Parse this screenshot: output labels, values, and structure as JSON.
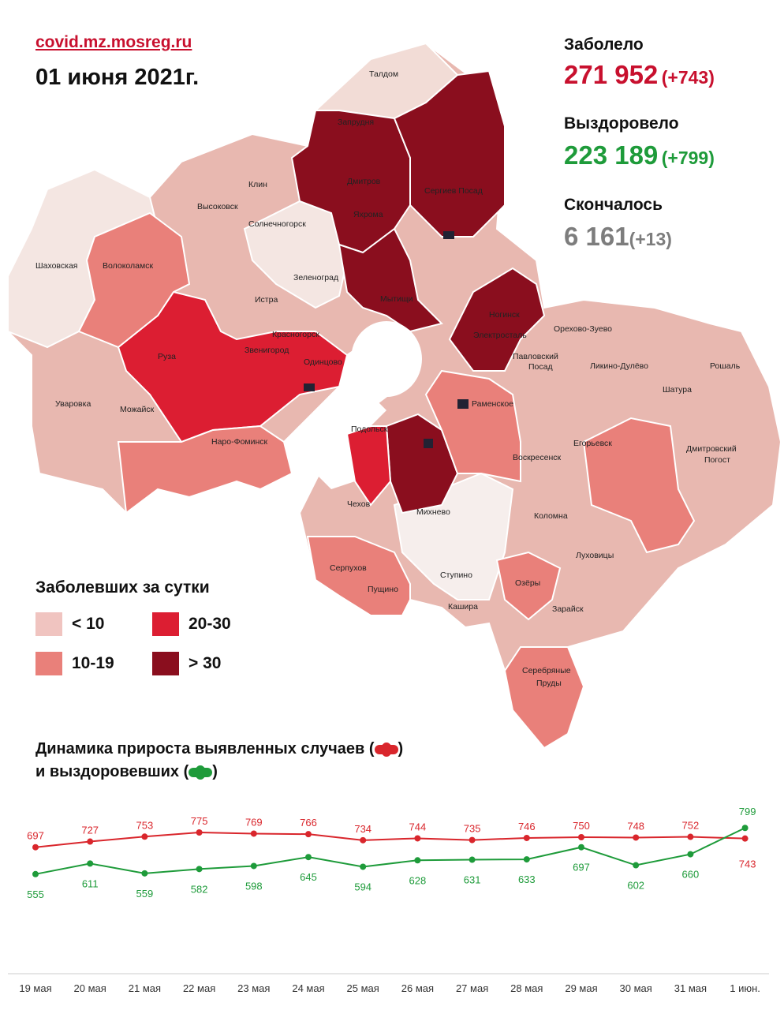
{
  "header": {
    "site": "covid.mz.mosreg.ru",
    "date": "01 июня 2021г."
  },
  "stats": {
    "sick": {
      "label": "Заболело",
      "value": "271 952",
      "delta": "(+743)",
      "color": "#c8102e"
    },
    "recovered": {
      "label": "Выздоровело",
      "value": "223 189",
      "delta": "(+799)",
      "color": "#1e9b3a"
    },
    "died": {
      "label": "Скончалось",
      "value": "6 161",
      "delta": "(+13)",
      "color": "#7d7d7d"
    }
  },
  "legend": {
    "title": "Заболевших за сутки",
    "items": [
      {
        "label": "< 10",
        "color": "#f0c4c0"
      },
      {
        "label": "10-19",
        "color": "#e9807a"
      },
      {
        "label": "20-30",
        "color": "#dc1e32"
      },
      {
        "label": "> 30",
        "color": "#8a0e1e"
      }
    ]
  },
  "map": {
    "places": [
      "Талдом",
      "Запрудня",
      "Дмитров",
      "Яхрома",
      "Сергиев Посад",
      "Клин",
      "Высоковск",
      "Солнечногорск",
      "Шаховская",
      "Волоколамск",
      "Зеленоград",
      "Истра",
      "Мытищи",
      "Красногорск",
      "Ногинск",
      "Электросталь",
      "Орехово-Зуево",
      "Звенигород",
      "Руза",
      "Одинцово",
      "Павловский Посад",
      "Ликино-Дулёво",
      "Рошаль",
      "Уваровка",
      "Можайск",
      "Раменское",
      "Шатура",
      "Наро-Фоминск",
      "Подольск",
      "Егорьевск",
      "Дмитровский Погост",
      "Воскресенск",
      "Чехов",
      "Михнево",
      "Коломна",
      "Луховицы",
      "Серпухов",
      "Пущино",
      "Ступино",
      "Озёры",
      "Кашира",
      "Зарайск",
      "Серебряные Пруды"
    ]
  },
  "trend": {
    "title_line1": "Динамика прироста выявленных случаев (",
    "title_line2": "и выздоровевших (",
    "close_paren": ")",
    "dates": [
      "19 мая",
      "20 мая",
      "21 мая",
      "22 мая",
      "23 мая",
      "24 мая",
      "25 мая",
      "26 мая",
      "27 мая",
      "28 мая",
      "29 мая",
      "30 мая",
      "31 мая",
      "1 июн."
    ],
    "series": [
      {
        "name": "выявленных случаев",
        "color": "#d9262c",
        "values": [
          697,
          727,
          753,
          775,
          769,
          766,
          734,
          744,
          735,
          746,
          750,
          748,
          752,
          743
        ]
      },
      {
        "name": "выздоровевших",
        "color": "#1e9b3a",
        "values": [
          555,
          611,
          559,
          582,
          598,
          645,
          594,
          628,
          631,
          633,
          697,
          602,
          660,
          799
        ]
      }
    ]
  }
}
